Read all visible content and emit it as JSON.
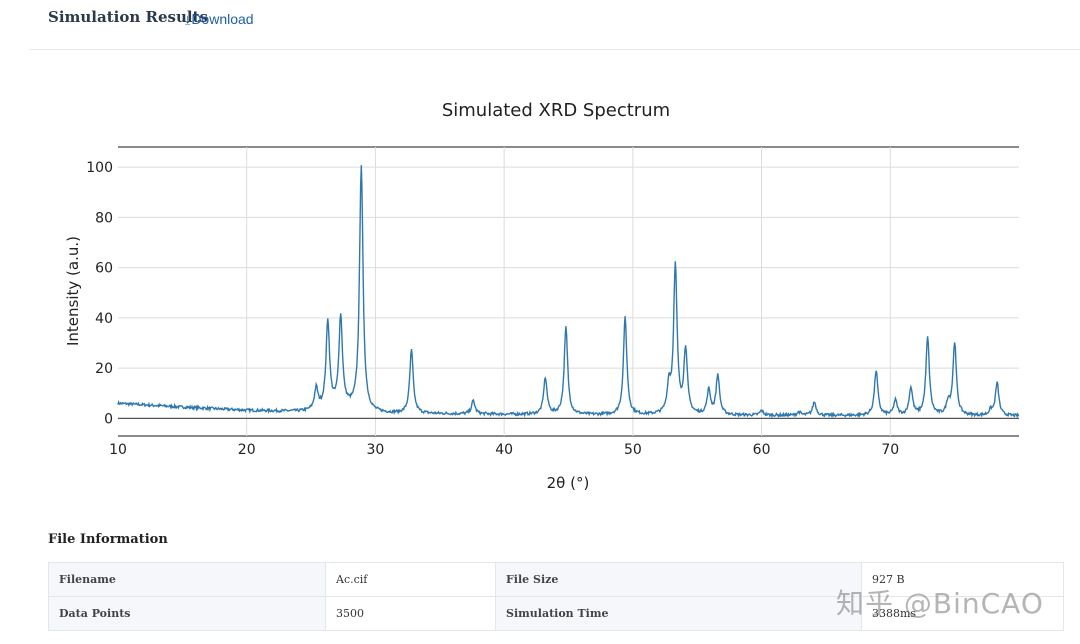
{
  "header": {
    "title": "Simulation Results",
    "download_label": "Download",
    "download_icon": "download-arrow-icon"
  },
  "chart_data": {
    "type": "line",
    "title": "Simulated XRD Spectrum",
    "xlabel": "2θ (°)",
    "ylabel": "Intensity (a.u.)",
    "xlim": [
      10,
      80
    ],
    "ylim": [
      -7,
      108
    ],
    "x_ticks": [
      10,
      20,
      30,
      40,
      50,
      60,
      70
    ],
    "y_ticks": [
      0,
      20,
      40,
      60,
      80,
      100
    ],
    "grid": true,
    "line_color": "#2e78b0",
    "baseline": [
      [
        10,
        6
      ],
      [
        15,
        4.5
      ],
      [
        20,
        3.2
      ],
      [
        25,
        2.6
      ],
      [
        30,
        2.0
      ],
      [
        40,
        1.6
      ],
      [
        50,
        1.3
      ],
      [
        60,
        1.2
      ],
      [
        70,
        1.1
      ],
      [
        80,
        1.0
      ]
    ],
    "peaks": [
      {
        "x": 25.4,
        "y": 11
      },
      {
        "x": 26.3,
        "y": 37
      },
      {
        "x": 27.3,
        "y": 38
      },
      {
        "x": 28.9,
        "y": 100
      },
      {
        "x": 32.8,
        "y": 27
      },
      {
        "x": 37.6,
        "y": 7
      },
      {
        "x": 43.2,
        "y": 16
      },
      {
        "x": 44.8,
        "y": 36
      },
      {
        "x": 49.4,
        "y": 40
      },
      {
        "x": 52.8,
        "y": 12
      },
      {
        "x": 53.3,
        "y": 60
      },
      {
        "x": 54.1,
        "y": 27
      },
      {
        "x": 55.9,
        "y": 11
      },
      {
        "x": 56.6,
        "y": 17
      },
      {
        "x": 60.0,
        "y": 3
      },
      {
        "x": 62.9,
        "y": 2.5
      },
      {
        "x": 64.1,
        "y": 6.5
      },
      {
        "x": 68.9,
        "y": 19
      },
      {
        "x": 70.4,
        "y": 7
      },
      {
        "x": 71.6,
        "y": 12
      },
      {
        "x": 72.9,
        "y": 32
      },
      {
        "x": 74.5,
        "y": 6
      },
      {
        "x": 75.0,
        "y": 30
      },
      {
        "x": 77.8,
        "y": 3
      },
      {
        "x": 78.3,
        "y": 14
      }
    ]
  },
  "file_info": {
    "title": "File Information",
    "rows": [
      {
        "label1": "Filename",
        "value1": "Ac.cif",
        "label2": "File Size",
        "value2": "927 B"
      },
      {
        "label1": "Data Points",
        "value1": "3500",
        "label2": "Simulation Time",
        "value2": "3388ms"
      }
    ]
  },
  "watermark": "知乎 @BinCAO"
}
